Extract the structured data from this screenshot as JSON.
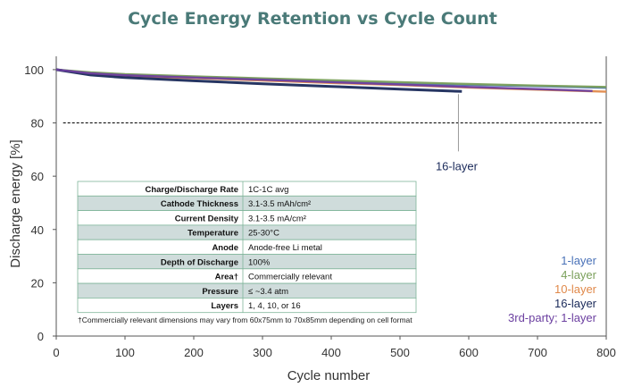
{
  "chart_data": {
    "type": "line",
    "title": "Cycle Energy Retention vs Cycle Count",
    "xlabel": "Cycle number",
    "ylabel": "Discharge energy [%]",
    "xlim": [
      0,
      800
    ],
    "ylim": [
      0,
      105
    ],
    "xticks": [
      0,
      100,
      200,
      300,
      400,
      500,
      600,
      700,
      800
    ],
    "yticks": [
      0,
      20,
      40,
      60,
      80,
      100
    ],
    "grid": false,
    "legend_position": "bottom-right",
    "reference_line": {
      "y": 80,
      "style": "dashed",
      "color": "#000000"
    },
    "series": [
      {
        "name": "1-layer",
        "color": "#4a72b8",
        "x": [
          0,
          50,
          100,
          200,
          300,
          400,
          500,
          600,
          700,
          800
        ],
        "y": [
          100,
          98.8,
          98.0,
          97.2,
          96.4,
          95.6,
          94.9,
          94.3,
          93.8,
          93.2
        ]
      },
      {
        "name": "4-layer",
        "color": "#7ba05b",
        "x": [
          0,
          50,
          100,
          200,
          300,
          400,
          500,
          600,
          700,
          800
        ],
        "y": [
          100,
          99.0,
          98.3,
          97.5,
          96.7,
          96.0,
          95.3,
          94.6,
          94.0,
          93.5
        ]
      },
      {
        "name": "10-layer",
        "color": "#e0894a",
        "x": [
          0,
          50,
          100,
          200,
          300,
          400,
          500,
          600,
          700,
          800
        ],
        "y": [
          100,
          98.5,
          97.7,
          96.8,
          95.9,
          95.0,
          94.2,
          93.3,
          92.5,
          91.7
        ]
      },
      {
        "name": "16-layer",
        "color": "#1a2a5a",
        "x": [
          0,
          50,
          100,
          200,
          300,
          400,
          500,
          590
        ],
        "y": [
          100,
          98.0,
          97.0,
          95.8,
          94.7,
          93.7,
          92.7,
          91.8
        ]
      },
      {
        "name": "3rd-party; 1-layer",
        "color": "#6b3fa0",
        "x": [
          0,
          50,
          100,
          200,
          300,
          400,
          500,
          600,
          700,
          780
        ],
        "y": [
          100,
          98.6,
          97.9,
          97.0,
          96.2,
          95.3,
          94.4,
          93.5,
          92.7,
          92.0
        ]
      }
    ],
    "annotation": {
      "text": "16-layer",
      "x": 585,
      "y": 91.8
    },
    "table": {
      "rows": [
        {
          "key": "Charge/Discharge Rate",
          "value": "1C-1C avg"
        },
        {
          "key": "Cathode Thickness",
          "value": "3.1-3.5 mAh/cm²"
        },
        {
          "key": "Current Density",
          "value": "3.1-3.5 mA/cm²"
        },
        {
          "key": "Temperature",
          "value": "25-30°C"
        },
        {
          "key": "Anode",
          "value": "Anode-free Li metal"
        },
        {
          "key": "Depth of Discharge",
          "value": "100%"
        },
        {
          "key": "Area†",
          "value": "Commercially relevant"
        },
        {
          "key": "Pressure",
          "value": "≤ ~3.4 atm"
        },
        {
          "key": "Layers",
          "value": "1, 4, 10, or 16"
        }
      ],
      "footnote": "†Commercially relevant dimensions may vary from 60x75mm to 70x85mm depending on cell format"
    }
  },
  "colors": {
    "title": "#4a7a78",
    "axis": "#555555",
    "table_border": "#7fb59a",
    "table_shade": "#cfdcdb"
  }
}
